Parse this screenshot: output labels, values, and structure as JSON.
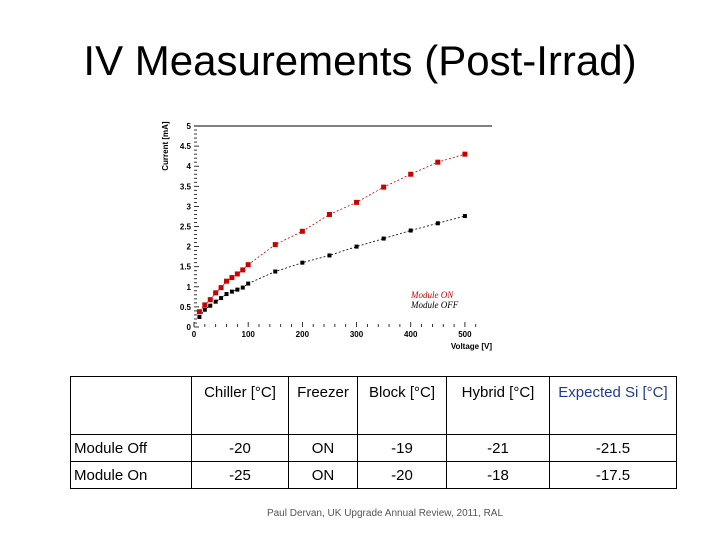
{
  "slide": {
    "title": "IV Measurements (Post-Irrad)",
    "footer": "Paul Dervan, UK Upgrade Annual Review, 2011, RAL"
  },
  "chart_data": {
    "type": "scatter",
    "title": "",
    "xlabel": "Voltage [V]",
    "ylabel": "Current [mA]",
    "xlim": [
      0,
      550
    ],
    "ylim": [
      0,
      5
    ],
    "x_ticks": [
      0,
      100,
      200,
      300,
      400,
      500
    ],
    "y_ticks": [
      0,
      0.5,
      1,
      1.5,
      2,
      2.5,
      3,
      3.5,
      4,
      4.5,
      5
    ],
    "y_tick_labels": [
      "0",
      "0.5",
      "1",
      "1.5",
      "2",
      "2.5",
      "3",
      "3.5",
      "4",
      "4.5",
      "5"
    ],
    "legend_position": "bottom-right",
    "series": [
      {
        "name": "Module ON",
        "color": "#cc0000",
        "points": [
          [
            10,
            0.38
          ],
          [
            20,
            0.55
          ],
          [
            30,
            0.68
          ],
          [
            40,
            0.85
          ],
          [
            50,
            0.98
          ],
          [
            60,
            1.14
          ],
          [
            70,
            1.23
          ],
          [
            80,
            1.32
          ],
          [
            90,
            1.42
          ],
          [
            100,
            1.55
          ],
          [
            150,
            2.05
          ],
          [
            200,
            2.38
          ],
          [
            250,
            2.8
          ],
          [
            300,
            3.1
          ],
          [
            350,
            3.48
          ],
          [
            400,
            3.8
          ],
          [
            450,
            4.1
          ],
          [
            500,
            4.3
          ]
        ]
      },
      {
        "name": "Module OFF",
        "color": "#000000",
        "points": [
          [
            10,
            0.25
          ],
          [
            20,
            0.43
          ],
          [
            30,
            0.53
          ],
          [
            40,
            0.63
          ],
          [
            50,
            0.72
          ],
          [
            60,
            0.82
          ],
          [
            70,
            0.88
          ],
          [
            80,
            0.93
          ],
          [
            90,
            0.98
          ],
          [
            100,
            1.08
          ],
          [
            150,
            1.38
          ],
          [
            200,
            1.6
          ],
          [
            250,
            1.78
          ],
          [
            300,
            2.0
          ],
          [
            350,
            2.2
          ],
          [
            400,
            2.4
          ],
          [
            450,
            2.58
          ],
          [
            500,
            2.76
          ]
        ]
      }
    ]
  },
  "table": {
    "headers": [
      "",
      "Chiller [°C]",
      "Freezer",
      "Block [°C]",
      "Hybrid [°C]",
      "Expected Si [°C]"
    ],
    "header_colors": [
      "#000000",
      "#000000",
      "#000000",
      "#000000",
      "#000000",
      "#1f3a8f"
    ],
    "rows": [
      [
        "Module Off",
        "-20",
        "ON",
        "-19",
        "-21",
        "-21.5"
      ],
      [
        "Module On",
        "-25",
        "ON",
        "-20",
        "-18",
        "-17.5"
      ]
    ]
  }
}
